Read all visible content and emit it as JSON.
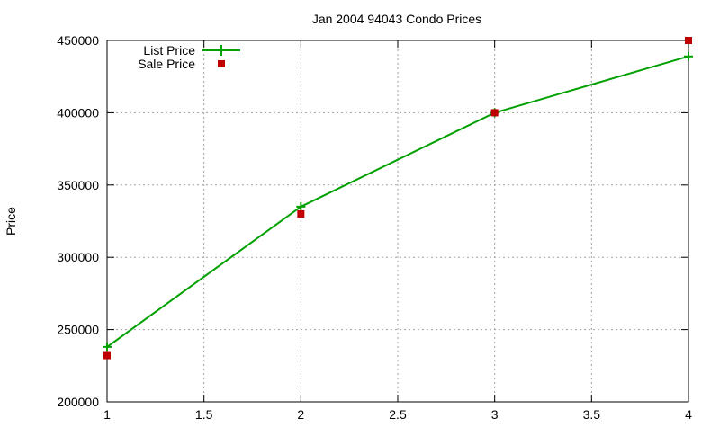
{
  "chart_data": {
    "type": "line",
    "title": "Jan 2004 94043 Condo Prices",
    "xlabel": "",
    "ylabel": "Price",
    "xlim": [
      1,
      4
    ],
    "ylim": [
      200000,
      450000
    ],
    "x_ticks": [
      1,
      1.5,
      2,
      2.5,
      3,
      3.5,
      4
    ],
    "x_tick_labels": [
      "1",
      "1.5",
      "2",
      "2.5",
      "3",
      "3.5",
      "4"
    ],
    "y_ticks": [
      200000,
      250000,
      300000,
      350000,
      400000,
      450000
    ],
    "y_tick_labels": [
      "200000",
      "250000",
      "300000",
      "350000",
      "400000",
      "450000"
    ],
    "grid": true,
    "legend_position": "top-left",
    "series": [
      {
        "name": "List Price",
        "type": "line",
        "marker": "plus",
        "color": "#00a000",
        "x": [
          1,
          2,
          3,
          4
        ],
        "y": [
          238000,
          335000,
          400000,
          439000
        ]
      },
      {
        "name": "Sale Price",
        "type": "scatter",
        "marker": "square",
        "color": "#c00000",
        "x": [
          1,
          2,
          3,
          4
        ],
        "y": [
          232000,
          330000,
          400000,
          450000
        ]
      }
    ]
  }
}
